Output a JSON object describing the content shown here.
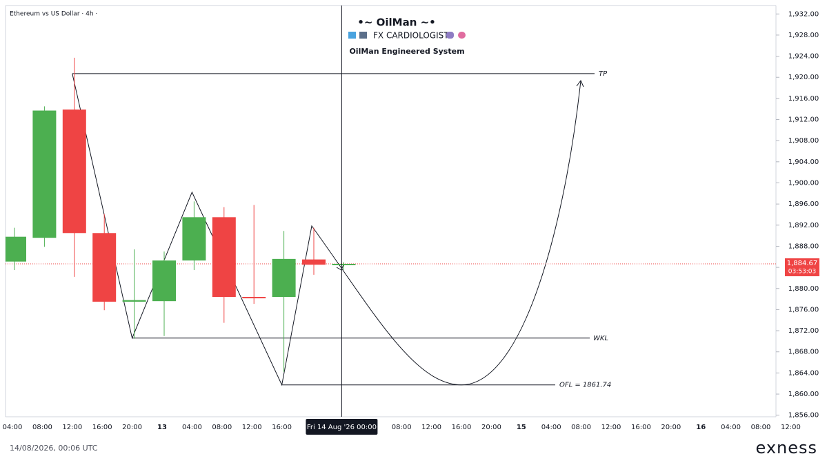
{
  "header": {
    "symbol": "Ethereum vs US Dollar · 4h ·"
  },
  "chart_data": {
    "type": "candlestick",
    "title": "•~ OilMan ~•",
    "subtitle": "FX CARDIOLOGIST",
    "note": "OilMan Engineered System",
    "categories": [
      "04:00",
      "08:00",
      "12:00",
      "16:00",
      "20:00",
      "13",
      "04:00",
      "08:00",
      "12:00",
      "16:00",
      null,
      null,
      null,
      "08:00",
      "12:00",
      "16:00",
      "20:00",
      "15",
      "04:00",
      "08:00",
      "12:00",
      "16:00",
      "20:00",
      "16",
      "04:00",
      "08:00",
      "12:00"
    ],
    "open": [
      1885.1,
      1889.6,
      1913.9,
      1890.5,
      1877.5,
      1877.6,
      1885.3,
      1893.5,
      1878.4,
      1878.4,
      1885.5,
      1884.5,
      null,
      null,
      null,
      null,
      null,
      null,
      null,
      null,
      null,
      null,
      null,
      null,
      null,
      null,
      null
    ],
    "high": [
      1891.5,
      1914.5,
      1923.7,
      1894.1,
      1887.4,
      1887.0,
      1896.5,
      1895.4,
      1895.8,
      1890.9,
      1891.5,
      1885.0,
      null,
      null,
      null,
      null,
      null,
      null,
      null,
      null,
      null,
      null,
      null,
      null,
      null,
      null,
      null
    ],
    "low": [
      1883.5,
      1887.9,
      1882.2,
      1875.9,
      1870.5,
      1871.0,
      1883.5,
      1873.5,
      1877.1,
      1864.2,
      1882.6,
      1883.5,
      null,
      null,
      null,
      null,
      null,
      null,
      null,
      null,
      null,
      null,
      null,
      null,
      null,
      null,
      null
    ],
    "close": [
      1889.8,
      1913.7,
      1890.5,
      1877.5,
      1877.8,
      1885.3,
      1893.5,
      1878.4,
      1878.2,
      1885.6,
      1884.5,
      1884.67,
      null,
      null,
      null,
      null,
      null,
      null,
      null,
      null,
      null,
      null,
      null,
      null,
      null,
      null,
      null
    ],
    "up_color": "#4caf50",
    "down_color": "#ef4444",
    "ylim": [
      1855.7,
      1933.6
    ],
    "yticks": [
      {
        "value": 1856,
        "label": "1,856.00"
      },
      {
        "value": 1860,
        "label": "1,860.00"
      },
      {
        "value": 1864,
        "label": "1,864.00"
      },
      {
        "value": 1868,
        "label": "1,868.00"
      },
      {
        "value": 1872,
        "label": "1,872.00"
      },
      {
        "value": 1876,
        "label": "1,876.00"
      },
      {
        "value": 1880,
        "label": "1,880.00"
      },
      {
        "value": 1884,
        "label": "1,884.00"
      },
      {
        "value": 1888,
        "label": "1,888.00"
      },
      {
        "value": 1892,
        "label": "1,892.00"
      },
      {
        "value": 1896,
        "label": "1,896.00"
      },
      {
        "value": 1900,
        "label": "1,900.00"
      },
      {
        "value": 1904,
        "label": "1,904.00"
      },
      {
        "value": 1908,
        "label": "1,908.00"
      },
      {
        "value": 1912,
        "label": "1,912.00"
      },
      {
        "value": 1916,
        "label": "1,916.00"
      },
      {
        "value": 1920,
        "label": "1,920.00"
      },
      {
        "value": 1924,
        "label": "1,924.00"
      },
      {
        "value": 1928,
        "label": "1,928.00"
      },
      {
        "value": 1932,
        "label": "1,932.00"
      }
    ],
    "last_price": {
      "value": 1884.67,
      "label": "1,884.67"
    },
    "countdown": "03:53:03",
    "levels": [
      {
        "label": "TP",
        "value": 1920.7
      },
      {
        "label": "WKL",
        "value": 1870.6
      },
      {
        "label": "OFL = 1861.74",
        "value": 1861.74
      }
    ],
    "crosshair_label": "Fri 14 Aug '26   00:00"
  },
  "footer": {
    "timestamp": "14/08/2026, 00:06 UTC",
    "brand": "exness"
  }
}
